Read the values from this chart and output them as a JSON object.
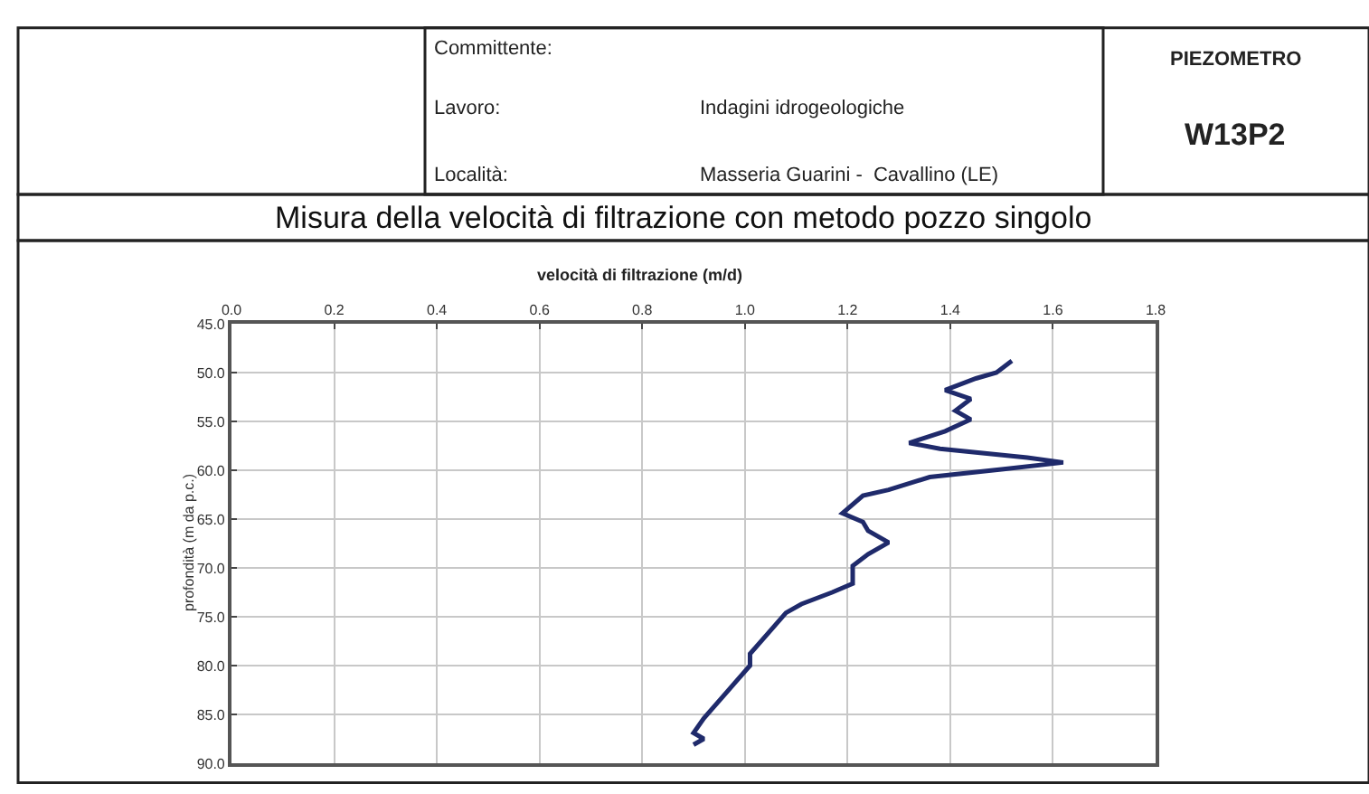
{
  "chart_data": {
    "type": "line",
    "title": "Misura della velocità di filtrazione con metodo pozzo singolo",
    "xlabel": "velocità di filtrazione (m/d)",
    "ylabel": "profondità (m da p.c.)",
    "annotations": [
      "Committente:",
      "Lavoro:",
      "Località:",
      "Indagini idrogeologiche",
      "Masseria Guarini -  Cavallino (LE)",
      "PIEZOMETRO",
      "W13P2"
    ],
    "x": [
      1.52,
      1.49,
      1.45,
      1.39,
      1.44,
      1.41,
      1.44,
      1.39,
      1.32,
      1.38,
      1.55,
      1.62,
      1.5,
      1.36,
      1.28,
      1.23,
      1.19,
      1.23,
      1.24,
      1.28,
      1.24,
      1.21,
      1.21,
      1.17,
      1.11,
      1.08,
      1.04,
      1.01,
      1.01,
      0.98,
      0.95,
      0.92,
      0.9,
      0.92,
      0.9
    ],
    "series": [
      {
        "color": "#1f2a6b",
        "values": [
          48.8,
          50.0,
          50.6,
          51.8,
          52.7,
          53.9,
          54.8,
          56.0,
          57.2,
          57.8,
          58.7,
          59.2,
          59.9,
          60.7,
          62.0,
          62.6,
          64.4,
          65.3,
          66.2,
          67.4,
          68.6,
          69.8,
          71.6,
          72.5,
          73.7,
          74.6,
          77.0,
          78.8,
          80.0,
          81.8,
          83.6,
          85.4,
          86.9,
          87.5,
          88.1
        ]
      }
    ],
    "xlim": [
      0,
      1.8
    ],
    "xticks": [
      {
        "value": 0,
        "label": "0.0"
      },
      {
        "value": 0.2,
        "label": "0.2"
      },
      {
        "value": 0.4,
        "label": "0.4"
      },
      {
        "value": 0.6,
        "label": "0.6"
      },
      {
        "value": 0.8,
        "label": "0.8"
      },
      {
        "value": 1.0,
        "label": "1.0"
      },
      {
        "value": 1.2,
        "label": "1.2"
      },
      {
        "value": 1.4,
        "label": "1.4"
      },
      {
        "value": 1.6,
        "label": "1.6"
      },
      {
        "value": 1.8,
        "label": "1.8"
      }
    ],
    "ylim": [
      90,
      45
    ],
    "yticks": [
      {
        "value": 45,
        "label": "45.0"
      },
      {
        "value": 50,
        "label": "50.0"
      },
      {
        "value": 55,
        "label": "55.0"
      },
      {
        "value": 60,
        "label": "60.0"
      },
      {
        "value": 65,
        "label": "65.0"
      },
      {
        "value": 70,
        "label": "70.0"
      },
      {
        "value": 75,
        "label": "75.0"
      },
      {
        "value": 80,
        "label": "80.0"
      },
      {
        "value": 85,
        "label": "85.0"
      },
      {
        "value": 90,
        "label": "90.0"
      }
    ],
    "grid": true,
    "marker": "none",
    "line_style": "solid",
    "legend": false
  }
}
